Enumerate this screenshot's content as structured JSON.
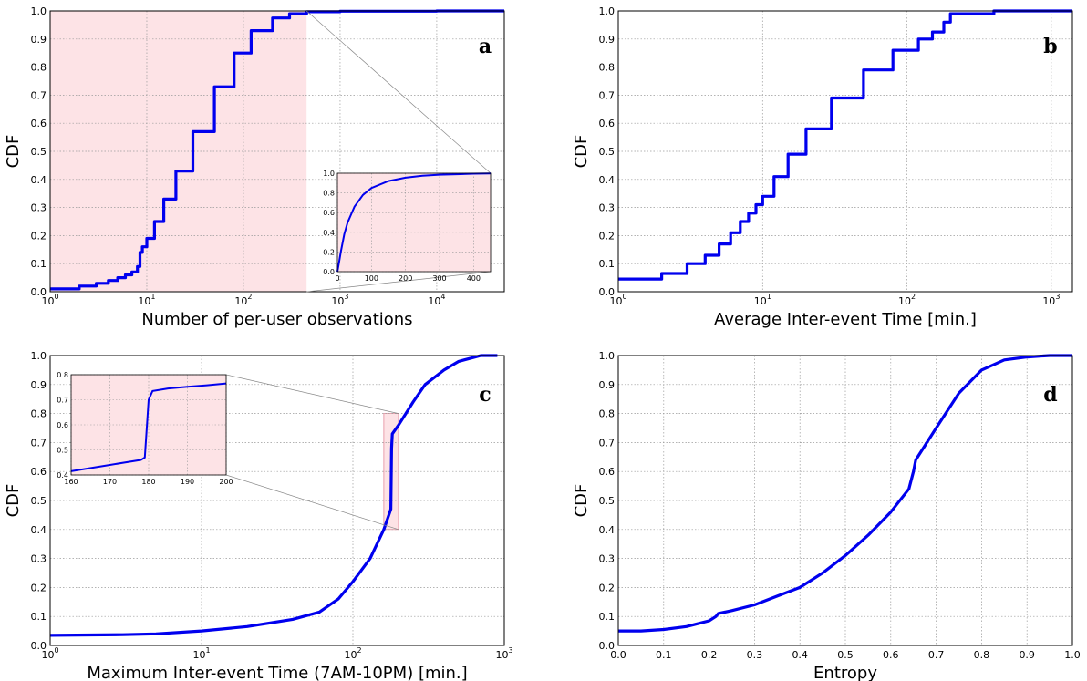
{
  "figure": {
    "panels": [
      "a",
      "b",
      "c",
      "d"
    ]
  },
  "chart_data": [
    {
      "id": "a",
      "type": "line",
      "panel_label": "a",
      "xlabel": "Number of per-user observations",
      "ylabel": "CDF",
      "xscale": "log",
      "xlim": [
        1,
        50000
      ],
      "ylim": [
        0,
        1
      ],
      "grid": true,
      "x_tick_labels": [
        "10^0",
        "10^1",
        "10^2",
        "10^3",
        "10^4"
      ],
      "y_tick_labels": [
        "0.0",
        "0.1",
        "0.2",
        "0.3",
        "0.4",
        "0.5",
        "0.6",
        "0.7",
        "0.8",
        "0.9",
        "1.0"
      ],
      "shaded_region": {
        "x": [
          1,
          450
        ],
        "color": "#fde3e6"
      },
      "series": [
        {
          "color": "#0000ee",
          "x": [
            1,
            2,
            3,
            4,
            5,
            6,
            7,
            8,
            8.5,
            9,
            10,
            12,
            15,
            20,
            30,
            50,
            80,
            120,
            200,
            300,
            450,
            1000,
            10000,
            50000
          ],
          "y": [
            0.01,
            0.02,
            0.03,
            0.04,
            0.05,
            0.06,
            0.07,
            0.09,
            0.14,
            0.16,
            0.19,
            0.25,
            0.33,
            0.43,
            0.57,
            0.73,
            0.85,
            0.93,
            0.975,
            0.99,
            0.997,
            0.999,
            1.0,
            1.0
          ]
        }
      ],
      "inset": {
        "xlim": [
          0,
          450
        ],
        "ylim": [
          0,
          1
        ],
        "x_tick_labels": [
          "0",
          "100",
          "200",
          "300",
          "400"
        ],
        "y_tick_labels": [
          "0.0",
          "0.2",
          "0.4",
          "0.6",
          "0.8",
          "1.0"
        ],
        "series": {
          "x": [
            0,
            5,
            10,
            20,
            30,
            50,
            75,
            100,
            150,
            200,
            250,
            300,
            350,
            400,
            450
          ],
          "y": [
            0.0,
            0.1,
            0.2,
            0.38,
            0.5,
            0.66,
            0.78,
            0.85,
            0.92,
            0.955,
            0.975,
            0.985,
            0.99,
            0.995,
            0.997
          ]
        }
      }
    },
    {
      "id": "b",
      "type": "line",
      "panel_label": "b",
      "xlabel": "Average Inter-event Time [min.]",
      "ylabel": "CDF",
      "xscale": "log",
      "xlim": [
        1,
        1400
      ],
      "ylim": [
        0,
        1
      ],
      "grid": true,
      "x_tick_labels": [
        "10^0",
        "10^1",
        "10^2",
        "10^3"
      ],
      "y_tick_labels": [
        "0.0",
        "0.1",
        "0.2",
        "0.3",
        "0.4",
        "0.5",
        "0.6",
        "0.7",
        "0.8",
        "0.9",
        "1.0"
      ],
      "series": [
        {
          "color": "#0000ee",
          "x": [
            1,
            2,
            3,
            4,
            5,
            6,
            7,
            8,
            9,
            10,
            12,
            15,
            20,
            30,
            50,
            80,
            120,
            150,
            180,
            200,
            400,
            1400
          ],
          "y": [
            0.045,
            0.065,
            0.1,
            0.13,
            0.17,
            0.21,
            0.25,
            0.28,
            0.31,
            0.34,
            0.41,
            0.49,
            0.58,
            0.69,
            0.79,
            0.86,
            0.9,
            0.925,
            0.96,
            0.99,
            1.0,
            1.0
          ]
        }
      ]
    },
    {
      "id": "c",
      "type": "line",
      "panel_label": "c",
      "xlabel": "Maximum Inter-event Time (7AM-10PM) [min.]",
      "ylabel": "CDF",
      "xscale": "log",
      "xlim": [
        1,
        1000
      ],
      "ylim": [
        0,
        1
      ],
      "grid": true,
      "x_tick_labels": [
        "10^0",
        "10^1",
        "10^2",
        "10^3"
      ],
      "y_tick_labels": [
        "0.0",
        "0.1",
        "0.2",
        "0.3",
        "0.4",
        "0.5",
        "0.6",
        "0.7",
        "0.8",
        "0.9",
        "1.0"
      ],
      "shaded_region": {
        "x": [
          160,
          200
        ],
        "y": [
          0.4,
          0.8
        ],
        "color": "#fde3e6"
      },
      "series": [
        {
          "color": "#0000ee",
          "x": [
            1,
            3,
            5,
            10,
            20,
            40,
            60,
            80,
            100,
            130,
            160,
            178,
            180,
            182,
            200,
            250,
            300,
            400,
            500,
            700,
            900
          ],
          "y": [
            0.035,
            0.037,
            0.04,
            0.05,
            0.065,
            0.09,
            0.115,
            0.16,
            0.22,
            0.3,
            0.4,
            0.47,
            0.68,
            0.73,
            0.76,
            0.84,
            0.9,
            0.95,
            0.98,
            1.0,
            1.0
          ]
        }
      ],
      "inset": {
        "xlim": [
          160,
          200
        ],
        "ylim": [
          0.4,
          0.8
        ],
        "x_tick_labels": [
          "160",
          "170",
          "180",
          "190",
          "200"
        ],
        "y_tick_labels": [
          "0.4",
          "0.5",
          "0.6",
          "0.7",
          "0.8"
        ],
        "series": {
          "x": [
            160,
            170,
            178,
            179,
            180,
            181,
            185,
            190,
            195,
            200
          ],
          "y": [
            0.415,
            0.44,
            0.46,
            0.47,
            0.7,
            0.735,
            0.745,
            0.752,
            0.758,
            0.765
          ]
        }
      }
    },
    {
      "id": "d",
      "type": "line",
      "panel_label": "d",
      "xlabel": "Entropy",
      "ylabel": "CDF",
      "xscale": "linear",
      "xlim": [
        0,
        1
      ],
      "ylim": [
        0,
        1
      ],
      "grid": true,
      "x_tick_labels": [
        "0.0",
        "0.1",
        "0.2",
        "0.3",
        "0.4",
        "0.5",
        "0.6",
        "0.7",
        "0.8",
        "0.9",
        "1.0"
      ],
      "y_tick_labels": [
        "0.0",
        "0.1",
        "0.2",
        "0.3",
        "0.4",
        "0.5",
        "0.6",
        "0.7",
        "0.8",
        "0.9",
        "1.0"
      ],
      "series": [
        {
          "color": "#0000ee",
          "x": [
            0,
            0.05,
            0.1,
            0.15,
            0.2,
            0.215,
            0.22,
            0.25,
            0.3,
            0.35,
            0.4,
            0.45,
            0.5,
            0.55,
            0.6,
            0.64,
            0.65,
            0.655,
            0.7,
            0.75,
            0.8,
            0.85,
            0.9,
            0.95,
            1.0
          ],
          "y": [
            0.05,
            0.05,
            0.055,
            0.065,
            0.085,
            0.1,
            0.11,
            0.12,
            0.14,
            0.17,
            0.2,
            0.25,
            0.31,
            0.38,
            0.46,
            0.54,
            0.6,
            0.64,
            0.75,
            0.87,
            0.95,
            0.985,
            0.995,
            1.0,
            1.0
          ]
        }
      ]
    }
  ]
}
